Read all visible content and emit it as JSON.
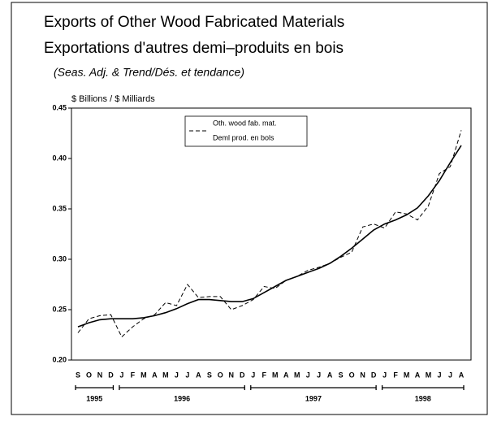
{
  "chart_data": {
    "type": "line",
    "title": "Exports of Other Wood Fabricated Materials",
    "title_fr": "Exportations d'autres demi–produits en bois",
    "subtitle": "(Seas. Adj. & Trend/Dés. et tendance)",
    "ylabel": "$ Billions / $ Milliards",
    "categories": [
      "S",
      "O",
      "N",
      "D",
      "J",
      "F",
      "M",
      "A",
      "M",
      "J",
      "J",
      "A",
      "S",
      "O",
      "N",
      "D",
      "J",
      "F",
      "M",
      "A",
      "M",
      "J",
      "J",
      "A",
      "S",
      "O",
      "N",
      "D",
      "J",
      "F",
      "M",
      "A",
      "M",
      "J",
      "J",
      "A"
    ],
    "years": [
      "1995",
      "1996",
      "1997",
      "1998"
    ],
    "series": [
      {
        "name": "Oth. wood fab. mat.",
        "name_fr": "Deml prod. en bols",
        "color": "#000000",
        "dash": true,
        "values": [
          0.227,
          0.241,
          0.244,
          0.245,
          0.223,
          0.233,
          0.241,
          0.245,
          0.257,
          0.254,
          0.275,
          0.262,
          0.263,
          0.263,
          0.25,
          0.254,
          0.26,
          0.273,
          0.271,
          0.279,
          0.283,
          0.289,
          0.292,
          0.296,
          0.302,
          0.307,
          0.332,
          0.335,
          0.331,
          0.347,
          0.345,
          0.339,
          0.353,
          0.385,
          0.392,
          0.428
        ]
      },
      {
        "color": "#000000",
        "dash": false,
        "values": [
          0.233,
          0.237,
          0.24,
          0.241,
          0.241,
          0.241,
          0.242,
          0.244,
          0.247,
          0.251,
          0.256,
          0.26,
          0.26,
          0.259,
          0.258,
          0.258,
          0.261,
          0.267,
          0.273,
          0.279,
          0.283,
          0.287,
          0.291,
          0.296,
          0.303,
          0.311,
          0.32,
          0.329,
          0.335,
          0.339,
          0.344,
          0.351,
          0.363,
          0.378,
          0.396,
          0.413
        ]
      }
    ],
    "ylim": [
      0.2,
      0.45
    ],
    "yticks": [
      {
        "value": 0.2,
        "label": "0.20"
      },
      0.25,
      {
        "value": 0.3,
        "label": "0.30"
      },
      0.35,
      {
        "value": 0.4,
        "label": "0.40"
      },
      0.45
    ],
    "grid": false
  }
}
